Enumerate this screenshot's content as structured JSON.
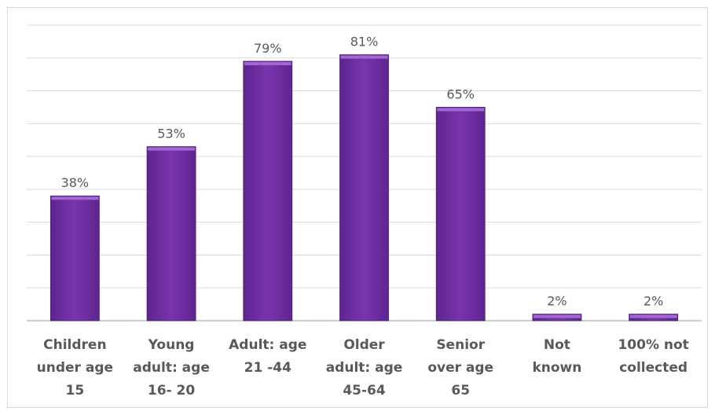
{
  "chart_data": {
    "type": "bar",
    "title": "",
    "xlabel": "",
    "ylabel": "",
    "categories": [
      [
        "Children",
        "under age",
        "15"
      ],
      [
        "Young",
        "adult: age",
        "16- 20"
      ],
      [
        "Adult: age",
        "21 -44"
      ],
      [
        "Older",
        "adult: age",
        "45-64"
      ],
      [
        "Senior",
        "over age",
        "65"
      ],
      [
        "Not",
        "known"
      ],
      [
        "100% not",
        "collected"
      ]
    ],
    "values": [
      38,
      53,
      79,
      81,
      65,
      2,
      2
    ],
    "data_labels": [
      "38%",
      "53%",
      "79%",
      "81%",
      "65%",
      "2%",
      "2%"
    ],
    "ylim": [
      0,
      90
    ],
    "grid": true,
    "bar_color": "#7030a0",
    "bar_highlight": "#a368cf",
    "grid_color": "#d9d9d9",
    "axis_color": "#bfbfbf",
    "text_color": "#595959"
  }
}
